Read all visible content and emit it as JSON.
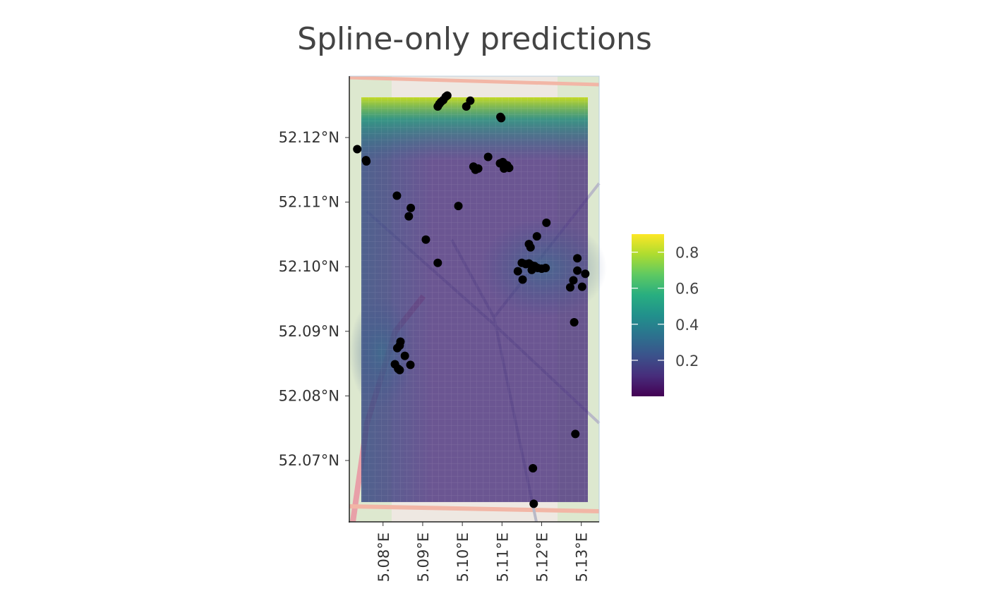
{
  "title": "Spline-only predictions",
  "axes": {
    "y_ticks": [
      {
        "value": 52.12,
        "label": "52.12°N"
      },
      {
        "value": 52.11,
        "label": "52.11°N"
      },
      {
        "value": 52.1,
        "label": "52.10°N"
      },
      {
        "value": 52.09,
        "label": "52.09°N"
      },
      {
        "value": 52.08,
        "label": "52.08°N"
      },
      {
        "value": 52.07,
        "label": "52.07°N"
      }
    ],
    "x_ticks": [
      {
        "value": 5.08,
        "label": "5.08°E"
      },
      {
        "value": 5.09,
        "label": "5.09°E"
      },
      {
        "value": 5.1,
        "label": "5.10°E"
      },
      {
        "value": 5.11,
        "label": "5.11°E"
      },
      {
        "value": 5.12,
        "label": "5.12°E"
      },
      {
        "value": 5.13,
        "label": "5.13°E"
      }
    ],
    "lon_range": [
      5.0715,
      5.1345
    ],
    "lat_range": [
      52.0605,
      52.1295
    ]
  },
  "legend": {
    "colormap": "viridis",
    "range": [
      0.0,
      0.9
    ],
    "ticks": [
      {
        "value": 0.8,
        "label": "0.8"
      },
      {
        "value": 0.6,
        "label": "0.6"
      },
      {
        "value": 0.4,
        "label": "0.4"
      },
      {
        "value": 0.2,
        "label": "0.2"
      }
    ],
    "colors": [
      "#440154",
      "#472d7b",
      "#3b528b",
      "#2c728e",
      "#21918c",
      "#28ae80",
      "#5ec962",
      "#addc30",
      "#fde725"
    ]
  },
  "chart_data": {
    "type": "scatter",
    "x_unit": "longitude (°E)",
    "y_unit": "latitude (°N)",
    "points": [
      [
        5.0938,
        52.1248
      ],
      [
        5.0942,
        52.1252
      ],
      [
        5.0946,
        52.1255
      ],
      [
        5.0952,
        52.1258
      ],
      [
        5.0958,
        52.1263
      ],
      [
        5.0962,
        52.1265
      ],
      [
        5.101,
        52.1248
      ],
      [
        5.102,
        52.1257
      ],
      [
        5.1096,
        52.1232
      ],
      [
        5.1098,
        52.123
      ],
      [
        5.0735,
        52.1182
      ],
      [
        5.0757,
        52.1165
      ],
      [
        5.0758,
        52.1163
      ],
      [
        5.1065,
        52.117
      ],
      [
        5.1028,
        52.1155
      ],
      [
        5.1033,
        52.115
      ],
      [
        5.104,
        52.1152
      ],
      [
        5.1095,
        52.116
      ],
      [
        5.1102,
        52.1162
      ],
      [
        5.1108,
        52.1158
      ],
      [
        5.1113,
        52.1157
      ],
      [
        5.1105,
        52.1152
      ],
      [
        5.1118,
        52.1153
      ],
      [
        5.0835,
        52.111
      ],
      [
        5.087,
        52.1091
      ],
      [
        5.0865,
        52.1078
      ],
      [
        5.099,
        52.1094
      ],
      [
        5.0908,
        52.1042
      ],
      [
        5.0938,
        52.1006
      ],
      [
        5.1212,
        52.1068
      ],
      [
        5.1188,
        52.1047
      ],
      [
        5.1168,
        52.1035
      ],
      [
        5.1172,
        52.103
      ],
      [
        5.115,
        52.1006
      ],
      [
        5.116,
        52.1004
      ],
      [
        5.1168,
        52.1005
      ],
      [
        5.1175,
        52.1002
      ],
      [
        5.1182,
        52.1001
      ],
      [
        5.119,
        52.0998
      ],
      [
        5.12,
        52.0997
      ],
      [
        5.121,
        52.0998
      ],
      [
        5.1175,
        52.0995
      ],
      [
        5.114,
        52.0993
      ],
      [
        5.1152,
        52.098
      ],
      [
        5.129,
        52.1013
      ],
      [
        5.129,
        52.0994
      ],
      [
        5.131,
        52.0989
      ],
      [
        5.128,
        52.0979
      ],
      [
        5.1272,
        52.0968
      ],
      [
        5.1302,
        52.0969
      ],
      [
        5.1282,
        52.0914
      ],
      [
        5.0844,
        52.0884
      ],
      [
        5.0842,
        52.0878
      ],
      [
        5.0836,
        52.0874
      ],
      [
        5.0855,
        52.0862
      ],
      [
        5.083,
        52.0849
      ],
      [
        5.0838,
        52.0842
      ],
      [
        5.0842,
        52.084
      ],
      [
        5.0869,
        52.0848
      ],
      [
        5.1285,
        52.0741
      ],
      [
        5.1178,
        52.0688
      ],
      [
        5.118,
        52.0633
      ]
    ]
  }
}
